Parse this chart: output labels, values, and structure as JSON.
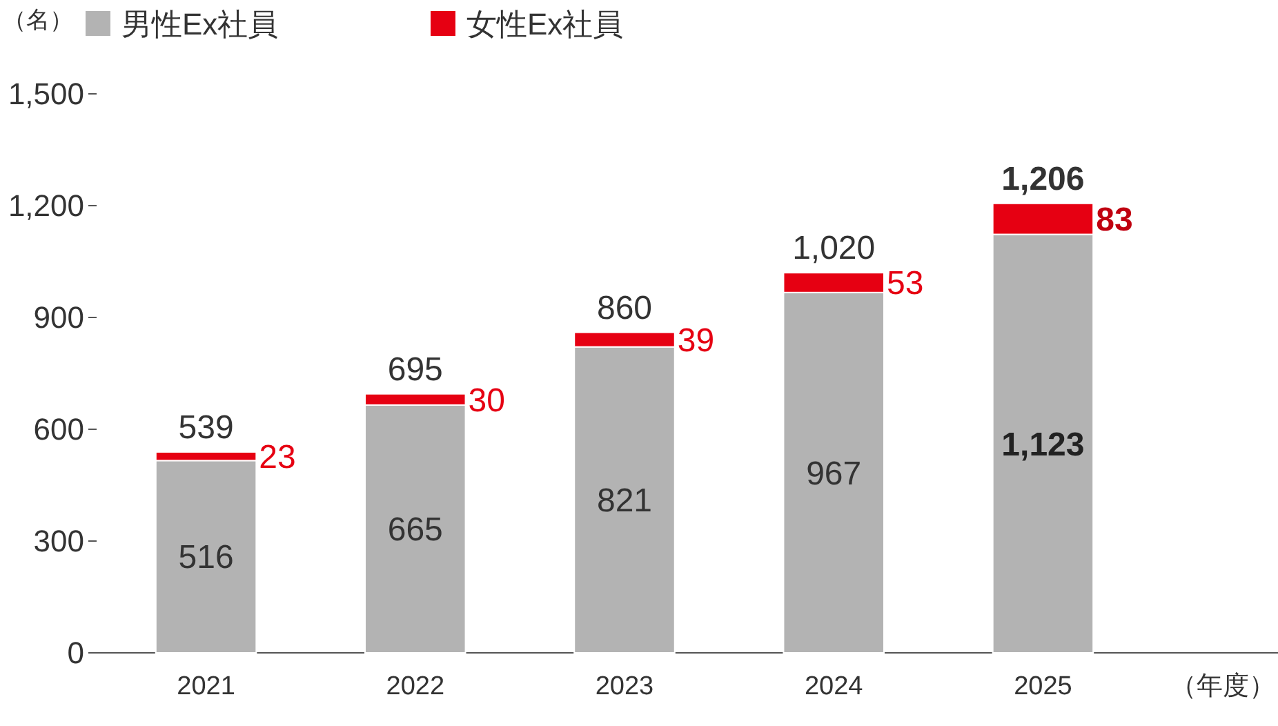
{
  "chart_data": {
    "type": "bar",
    "stacked": true,
    "ylabel": "（名）",
    "xlabel": "（年度）",
    "categories": [
      "2021",
      "2022",
      "2023",
      "2024",
      "2025"
    ],
    "series": [
      {
        "name": "男性Ex社員",
        "color": "#b3b3b3",
        "values": [
          516,
          665,
          821,
          967,
          1123
        ],
        "value_labels": [
          "516",
          "665",
          "821",
          "967",
          "1,123"
        ]
      },
      {
        "name": "女性Ex社員",
        "color": "#e60012",
        "values": [
          23,
          30,
          39,
          53,
          83
        ],
        "value_labels": [
          "23",
          "30",
          "39",
          "53",
          "83"
        ]
      }
    ],
    "totals": [
      "539",
      "695",
      "860",
      "1,020",
      "1,206"
    ],
    "ylim": [
      0,
      1500
    ],
    "yticks": [
      0,
      {
        "value": 300,
        "label": "300"
      },
      {
        "value": 600,
        "label": "600"
      },
      {
        "value": 900,
        "label": "900"
      },
      {
        "value": 1200,
        "label": "1,200"
      },
      {
        "value": 1500,
        "label": "1,500"
      }
    ],
    "legend": "top left"
  }
}
